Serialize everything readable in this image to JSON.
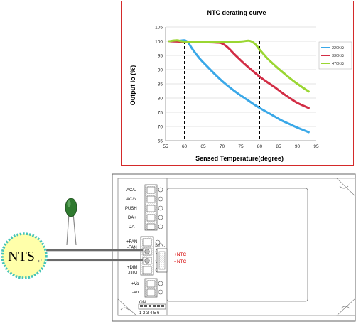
{
  "chart_data": {
    "type": "line",
    "title": "NTC  derating curve",
    "xlabel": "Sensed Temperature(degree)",
    "ylabel": "Output Io (%)",
    "xlim": [
      55,
      95
    ],
    "ylim": [
      65,
      105
    ],
    "x_ticks": [
      55,
      60,
      65,
      70,
      75,
      80,
      85,
      90,
      95
    ],
    "y_ticks": [
      65,
      70,
      75,
      80,
      85,
      90,
      95,
      100,
      105
    ],
    "grid": "horizontal",
    "legend_position": "right",
    "reference_lines_x": [
      60,
      70,
      80
    ],
    "series": [
      {
        "name": "220KΩ",
        "color": "#3aa8e8",
        "x": [
          56,
          58,
          60,
          61,
          62,
          64,
          66,
          68,
          70,
          72,
          74,
          76,
          78,
          80,
          82,
          84,
          86,
          88,
          90,
          93
        ],
        "y": [
          100,
          100,
          100.3,
          99.5,
          97.5,
          94,
          91.2,
          88.5,
          86,
          83.8,
          81.8,
          80,
          78.2,
          76.5,
          75,
          73.5,
          72,
          70.8,
          69.6,
          68
        ]
      },
      {
        "name": "330KΩ",
        "color": "#d22d45",
        "x": [
          56,
          60,
          65,
          69,
          70,
          71,
          72,
          73,
          74,
          76,
          78,
          80,
          82,
          84,
          86,
          88,
          90,
          93
        ],
        "y": [
          100,
          99.8,
          99.7,
          99.5,
          99.2,
          98.4,
          97.2,
          95.8,
          94.5,
          92,
          89.7,
          87.5,
          85.6,
          83.8,
          81.8,
          80,
          78.3,
          76.5
        ]
      },
      {
        "name": "470KΩ",
        "color": "#9ad632",
        "x": [
          56,
          58,
          60,
          65,
          70,
          75,
          77,
          78,
          79,
          80,
          81,
          82,
          84,
          86,
          88,
          90,
          93
        ],
        "y": [
          100,
          100.3,
          99.9,
          99.8,
          99.7,
          99.9,
          100.2,
          99.8,
          98.7,
          97,
          95.5,
          94,
          91.5,
          89.2,
          87,
          85,
          82.3
        ]
      }
    ]
  },
  "module": {
    "terminals_top": [
      "AC/L",
      "AC/N",
      "PUSH",
      "DA+",
      "DA-"
    ],
    "terminals_fan": [
      "+FAN",
      "-FAN"
    ],
    "terminals_dim": [
      "+DIM",
      "-DIM"
    ],
    "terminals_vo": [
      "+Vo",
      "-Vo"
    ],
    "syn_label": "SYN.",
    "ntc_pos": "+NTC",
    "ntc_neg": "- NTC",
    "dip_label": "ON",
    "dip_numbers": "1 2 3 4 5 6"
  },
  "sensor": {
    "label": "NTS"
  },
  "colors": {
    "frame": "#d42a2a",
    "wire": "#6a6a6a",
    "ntc_label": "#d40000",
    "sensor_fill": "#ffffaa",
    "sensor_border": "#45c4b8",
    "thermistor_body": "#2f7a2f"
  }
}
